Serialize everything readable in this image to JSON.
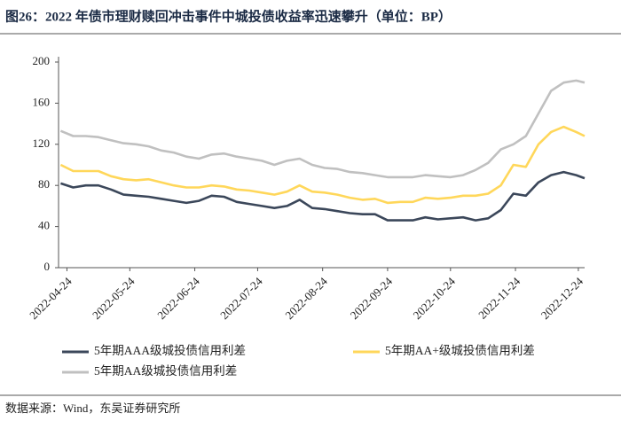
{
  "chart_data": {
    "type": "line",
    "title": "图26：2022 年债市理财赎回冲击事件中城投债收益率迅速攀升（单位：BP）",
    "source": "数据来源：Wind，东吴证券研究所",
    "x": [
      "2022-04-21",
      "2022-04-27",
      "2022-05-03",
      "2022-05-09",
      "2022-05-15",
      "2022-05-21",
      "2022-05-27",
      "2022-06-02",
      "2022-06-08",
      "2022-06-14",
      "2022-06-20",
      "2022-06-26",
      "2022-07-02",
      "2022-07-08",
      "2022-07-14",
      "2022-07-20",
      "2022-07-26",
      "2022-08-01",
      "2022-08-07",
      "2022-08-13",
      "2022-08-19",
      "2022-08-25",
      "2022-08-31",
      "2022-09-06",
      "2022-09-12",
      "2022-09-18",
      "2022-09-24",
      "2022-09-30",
      "2022-10-06",
      "2022-10-12",
      "2022-10-18",
      "2022-10-24",
      "2022-10-30",
      "2022-11-05",
      "2022-11-11",
      "2022-11-17",
      "2022-11-23",
      "2022-11-29",
      "2022-12-05",
      "2022-12-11",
      "2022-12-17",
      "2022-12-23",
      "2022-12-27"
    ],
    "series": [
      {
        "name": "5年期AAA级城投债信用利差",
        "color": "#3b475a",
        "values": [
          82,
          78,
          80,
          80,
          76,
          71,
          70,
          69,
          67,
          65,
          63,
          65,
          70,
          69,
          64,
          62,
          60,
          58,
          60,
          66,
          58,
          57,
          55,
          53,
          52,
          52,
          46,
          46,
          46,
          49,
          47,
          48,
          49,
          46,
          48,
          56,
          72,
          70,
          83,
          90,
          93,
          90,
          87
        ]
      },
      {
        "name": "5年期AA+级城投债信用利差",
        "color": "#ffd75a",
        "values": [
          100,
          94,
          94,
          94,
          89,
          86,
          85,
          86,
          83,
          80,
          78,
          78,
          80,
          79,
          76,
          75,
          73,
          71,
          74,
          80,
          74,
          73,
          71,
          68,
          66,
          67,
          63,
          64,
          64,
          68,
          67,
          68,
          70,
          70,
          72,
          80,
          100,
          98,
          120,
          132,
          137,
          132,
          128
        ]
      },
      {
        "name": "5年期AA级城投债信用利差",
        "color": "#c0c0c0",
        "values": [
          133,
          128,
          128,
          127,
          124,
          121,
          120,
          118,
          114,
          112,
          108,
          106,
          110,
          111,
          108,
          106,
          104,
          100,
          104,
          106,
          100,
          97,
          96,
          93,
          92,
          90,
          88,
          88,
          88,
          90,
          89,
          88,
          90,
          95,
          102,
          115,
          120,
          128,
          150,
          172,
          180,
          182,
          180
        ]
      }
    ],
    "xlim": [
      "2022-04-20",
      "2022-12-27"
    ],
    "xticks": [
      "2022-04-24",
      "2022-05-24",
      "2022-06-24",
      "2022-07-24",
      "2022-08-24",
      "2022-09-24",
      "2022-10-24",
      "2022-11-24",
      "2022-12-24"
    ],
    "ylim": [
      0,
      200
    ],
    "yticks": [
      0,
      40,
      80,
      120,
      160,
      200
    ]
  }
}
